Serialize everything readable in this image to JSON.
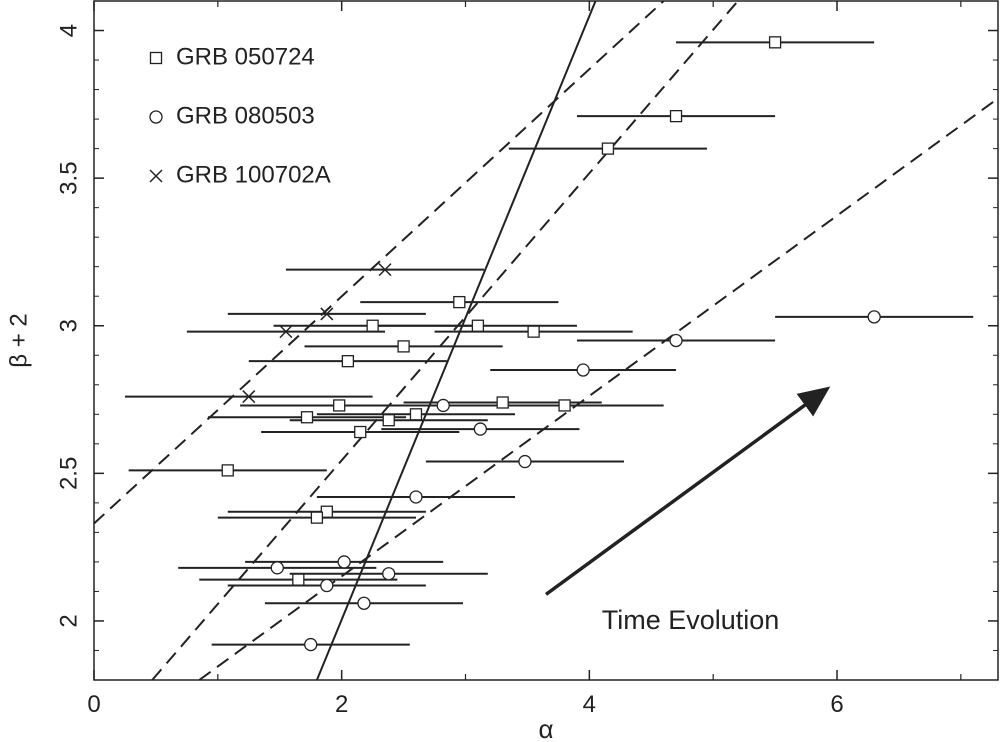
{
  "chart_data": {
    "type": "scatter",
    "xlabel": "α",
    "ylabel": "β + 2",
    "xlim": [
      0,
      7.3
    ],
    "ylim": [
      1.8,
      4.1
    ],
    "x_ticks": [
      0,
      2,
      4,
      6
    ],
    "y_ticks": [
      2,
      2.5,
      3,
      3.5,
      4
    ],
    "legend_position": "top-left",
    "series": [
      {
        "name": "GRB 050724",
        "marker": "square",
        "points": [
          {
            "x": 5.5,
            "y": 3.96,
            "xerr": 0.8
          },
          {
            "x": 4.7,
            "y": 3.71,
            "xerr": 0.8
          },
          {
            "x": 4.15,
            "y": 3.6,
            "xerr": 0.8
          },
          {
            "x": 2.95,
            "y": 3.08,
            "xerr": 0.8
          },
          {
            "x": 2.25,
            "y": 3.0,
            "xerr": 0.8
          },
          {
            "x": 3.1,
            "y": 3.0,
            "xerr": 0.8
          },
          {
            "x": 3.55,
            "y": 2.98,
            "xerr": 0.8
          },
          {
            "x": 2.5,
            "y": 2.93,
            "xerr": 0.8
          },
          {
            "x": 2.05,
            "y": 2.88,
            "xerr": 0.8
          },
          {
            "x": 3.3,
            "y": 2.74,
            "xerr": 0.8
          },
          {
            "x": 3.8,
            "y": 2.73,
            "xerr": 0.8
          },
          {
            "x": 1.98,
            "y": 2.73,
            "xerr": 0.8
          },
          {
            "x": 1.72,
            "y": 2.69,
            "xerr": 0.8
          },
          {
            "x": 2.6,
            "y": 2.7,
            "xerr": 0.8
          },
          {
            "x": 2.38,
            "y": 2.68,
            "xerr": 0.8
          },
          {
            "x": 2.15,
            "y": 2.64,
            "xerr": 0.8
          },
          {
            "x": 1.08,
            "y": 2.51,
            "xerr": 0.8
          },
          {
            "x": 1.88,
            "y": 2.37,
            "xerr": 0.8
          },
          {
            "x": 1.8,
            "y": 2.35,
            "xerr": 0.8
          },
          {
            "x": 1.65,
            "y": 2.14,
            "xerr": 0.8
          }
        ]
      },
      {
        "name": "GRB 080503",
        "marker": "circle",
        "points": [
          {
            "x": 6.3,
            "y": 3.03,
            "xerr": 0.8
          },
          {
            "x": 4.7,
            "y": 2.95,
            "xerr": 0.8
          },
          {
            "x": 3.95,
            "y": 2.85,
            "xerr": 0.75
          },
          {
            "x": 2.82,
            "y": 2.73,
            "xerr": 0.8
          },
          {
            "x": 3.12,
            "y": 2.65,
            "xerr": 0.8
          },
          {
            "x": 3.48,
            "y": 2.54,
            "xerr": 0.8
          },
          {
            "x": 2.6,
            "y": 2.42,
            "xerr": 0.8
          },
          {
            "x": 2.02,
            "y": 2.2,
            "xerr": 0.8
          },
          {
            "x": 1.48,
            "y": 2.18,
            "xerr": 0.8
          },
          {
            "x": 2.38,
            "y": 2.16,
            "xerr": 0.8
          },
          {
            "x": 1.88,
            "y": 2.12,
            "xerr": 0.8
          },
          {
            "x": 2.18,
            "y": 2.06,
            "xerr": 0.8
          },
          {
            "x": 1.75,
            "y": 1.92,
            "xerr": 0.8
          }
        ]
      },
      {
        "name": "GRB 100702A",
        "marker": "cross",
        "points": [
          {
            "x": 2.35,
            "y": 3.19,
            "xerr": 0.8
          },
          {
            "x": 1.88,
            "y": 3.04,
            "xerr": 0.8
          },
          {
            "x": 1.55,
            "y": 2.98,
            "xerr": 0.8
          },
          {
            "x": 1.25,
            "y": 2.76,
            "xerr": 1.0
          }
        ]
      }
    ],
    "lines": [
      {
        "style": "solid",
        "points": [
          [
            1.8,
            1.8
          ],
          [
            4.05,
            4.1
          ]
        ]
      },
      {
        "style": "dashed",
        "points": [
          [
            0,
            2.33
          ],
          [
            4.6,
            4.1
          ]
        ]
      },
      {
        "style": "dashed",
        "points": [
          [
            0.47,
            1.8
          ],
          [
            5.2,
            4.1
          ]
        ]
      },
      {
        "style": "dashed",
        "points": [
          [
            0.85,
            1.8
          ],
          [
            7.3,
            3.77
          ]
        ]
      }
    ],
    "annotation": {
      "text": "Time Evolution",
      "arrow_from": [
        3.65,
        2.09
      ],
      "arrow_to": [
        5.9,
        2.78
      ],
      "text_at": [
        4.1,
        2.0
      ]
    }
  }
}
